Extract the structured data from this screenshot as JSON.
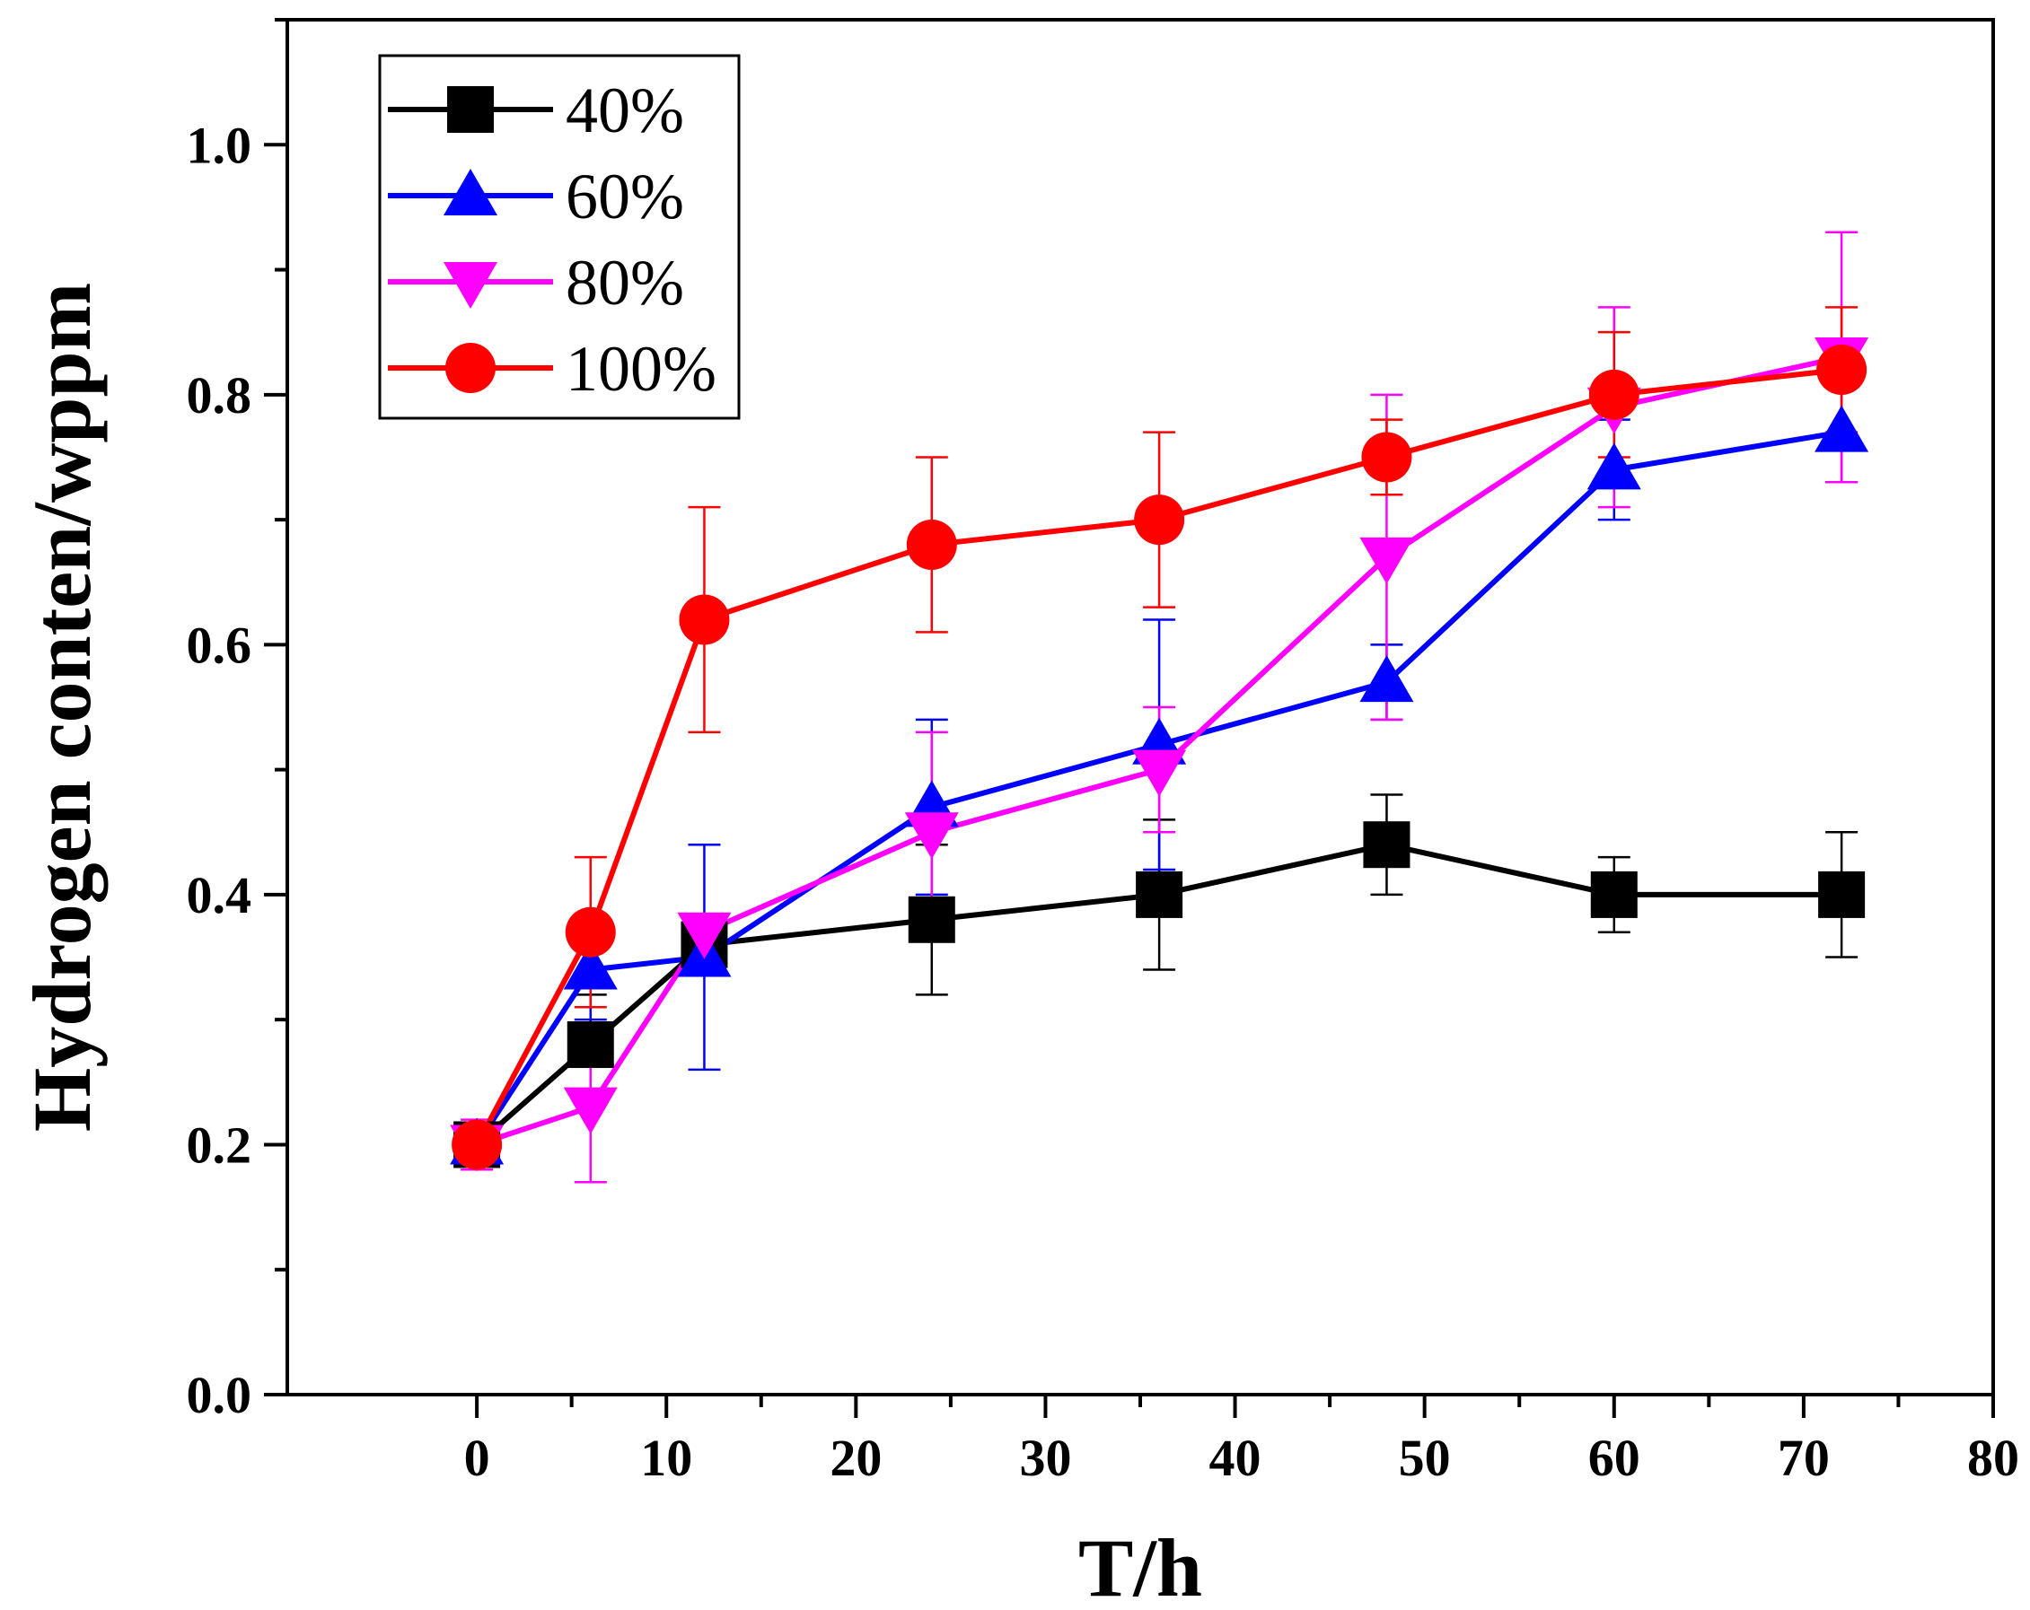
{
  "chart_data": {
    "type": "line",
    "title": "",
    "xlabel": "T/h",
    "ylabel": "Hydrogen conten/wppm",
    "xlim": [
      -10,
      80
    ],
    "ylim": [
      0.0,
      1.1
    ],
    "xticks": [
      0,
      10,
      20,
      30,
      40,
      50,
      60,
      70,
      80
    ],
    "xtick_labels": [
      "0",
      "10",
      "20",
      "30",
      "40",
      "50",
      "60",
      "70",
      "80"
    ],
    "yticks": [
      0.0,
      0.2,
      0.4,
      0.6,
      0.8,
      1.0
    ],
    "ytick_labels": [
      "0.0",
      "0.2",
      "0.4",
      "0.6",
      "0.8",
      "1.0"
    ],
    "x_minor_step": 5,
    "y_minor_step": 0.1,
    "grid": false,
    "legend_position": "top-left",
    "x": [
      0,
      6,
      12,
      24,
      36,
      48,
      60,
      72
    ],
    "series": [
      {
        "name": "40%",
        "color": "#000000",
        "marker": "square",
        "values": [
          0.2,
          0.28,
          0.36,
          0.38,
          0.4,
          0.44,
          0.4,
          0.4
        ],
        "errors": [
          0.01,
          0.04,
          0.01,
          0.06,
          0.06,
          0.04,
          0.03,
          0.05
        ]
      },
      {
        "name": "60%",
        "color": "#0000FF",
        "marker": "triangle-up",
        "values": [
          0.2,
          0.34,
          0.35,
          0.47,
          0.52,
          0.57,
          0.74,
          0.77
        ],
        "errors": [
          0.01,
          0.04,
          0.09,
          0.07,
          0.1,
          0.03,
          0.04,
          0.04
        ]
      },
      {
        "name": "80%",
        "color": "#FF00FF",
        "marker": "triangle-down",
        "values": [
          0.2,
          0.23,
          0.37,
          0.45,
          0.5,
          0.67,
          0.79,
          0.83
        ],
        "errors": [
          0.02,
          0.06,
          0.01,
          0.08,
          0.05,
          0.13,
          0.08,
          0.1
        ]
      },
      {
        "name": "100%",
        "color": "#FF0000",
        "marker": "circle",
        "values": [
          0.2,
          0.37,
          0.62,
          0.68,
          0.7,
          0.75,
          0.8,
          0.82
        ],
        "errors": [
          0.01,
          0.06,
          0.09,
          0.07,
          0.07,
          0.03,
          0.05,
          0.05
        ]
      }
    ]
  }
}
